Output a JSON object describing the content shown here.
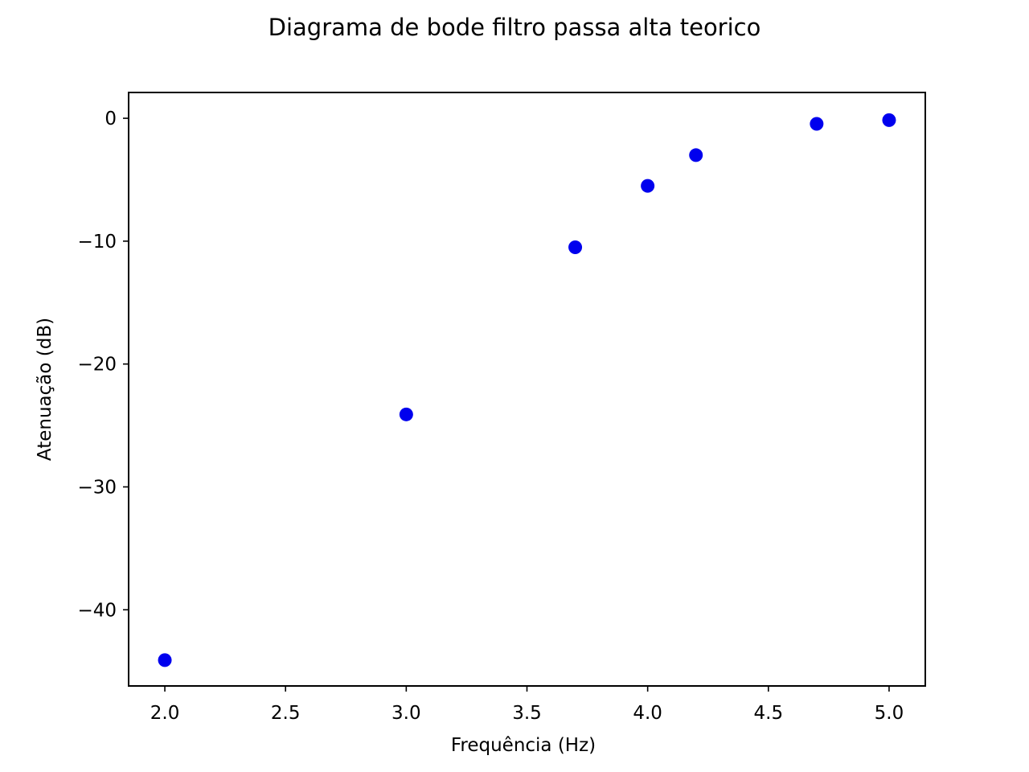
{
  "chart_data": {
    "type": "scatter",
    "title": "Diagrama de bode filtro passa alta teorico",
    "xlabel": "Frequência (Hz)",
    "ylabel": "Atenuação (dB)",
    "xlim": [
      1.85,
      5.15
    ],
    "ylim": [
      -46.2,
      2.1
    ],
    "xticks": [
      2.0,
      2.5,
      3.0,
      3.5,
      4.0,
      4.5,
      5.0
    ],
    "xtick_labels": [
      "2.0",
      "2.5",
      "3.0",
      "3.5",
      "4.0",
      "4.5",
      "5.0"
    ],
    "yticks": [
      0,
      -10,
      -20,
      -30,
      -40
    ],
    "ytick_labels": [
      "0",
      "−10",
      "−20",
      "−30",
      "−40"
    ],
    "grid": false,
    "marker_color": "#0000ee",
    "series": [
      {
        "x": [
          2.0,
          3.0,
          3.7,
          4.0,
          4.2,
          4.7,
          5.0
        ],
        "y": [
          -44.1,
          -24.1,
          -10.5,
          -5.5,
          -3.0,
          -0.45,
          -0.15
        ]
      }
    ]
  }
}
